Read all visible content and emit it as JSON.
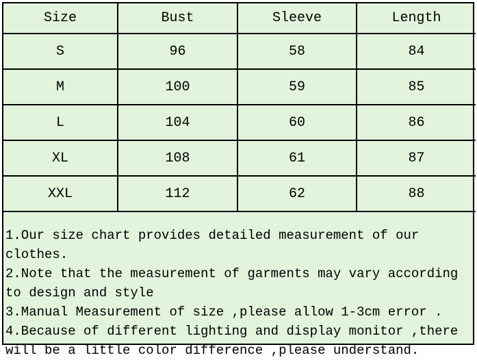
{
  "table": {
    "headers": [
      "Size",
      "Bust",
      "Sleeve",
      "Length"
    ],
    "rows": [
      [
        "S",
        "96",
        "58",
        "84"
      ],
      [
        "M",
        "100",
        "59",
        "85"
      ],
      [
        "L",
        "104",
        "60",
        "86"
      ],
      [
        "XL",
        "108",
        "61",
        "87"
      ],
      [
        "XXL",
        "112",
        "62",
        "88"
      ]
    ]
  },
  "notes": [
    "1.Our size chart provides detailed measurement of our clothes.",
    "2.Note that the measurement of garments may vary according to design and style",
    "3.Manual Measurement of size ,please allow 1-3cm error .",
    "4.Because of different lighting and display monitor ,there will be a little color difference ,please understand."
  ],
  "colors": {
    "background": "#e2f4dc",
    "border": "#000000"
  }
}
